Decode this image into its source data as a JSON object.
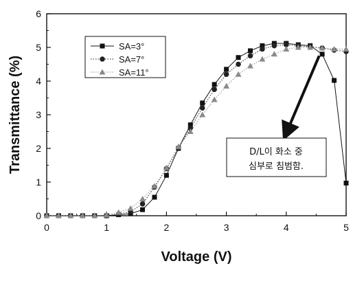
{
  "chart_data": {
    "type": "line",
    "xlabel": "Voltage (V)",
    "ylabel": "Transmittance (%)",
    "xlim": [
      0,
      5
    ],
    "ylim": [
      0,
      6
    ],
    "xticks": [
      "0",
      "1",
      "2",
      "3",
      "4",
      "5"
    ],
    "yticks": [
      "0",
      "1",
      "2",
      "3",
      "4",
      "5",
      "6"
    ],
    "grid": false,
    "legend_position": "upper-left",
    "x": [
      0,
      0.2,
      0.4,
      0.6,
      0.8,
      1.0,
      1.2,
      1.4,
      1.6,
      1.8,
      2.0,
      2.2,
      2.4,
      2.6,
      2.8,
      3.0,
      3.2,
      3.4,
      3.6,
      3.8,
      4.0,
      4.2,
      4.4,
      4.6,
      4.8,
      5.0
    ],
    "series": [
      {
        "name": "SA=3°",
        "marker": "square",
        "line": "solid",
        "color": "#111111",
        "values": [
          0,
          0,
          0,
          0,
          0,
          0,
          0.03,
          0.06,
          0.18,
          0.55,
          1.2,
          2.0,
          2.7,
          3.35,
          3.9,
          4.35,
          4.7,
          4.9,
          5.05,
          5.12,
          5.12,
          5.08,
          5.05,
          4.8,
          4.02,
          0.97
        ]
      },
      {
        "name": "SA=7°",
        "marker": "circle",
        "line": "dotted",
        "color": "#222222",
        "values": [
          0,
          0,
          0,
          0,
          0,
          0,
          0.05,
          0.12,
          0.35,
          0.85,
          1.4,
          2.0,
          2.6,
          3.2,
          3.75,
          4.2,
          4.5,
          4.75,
          4.95,
          5.05,
          5.08,
          5.05,
          5.02,
          4.98,
          4.92,
          4.88
        ]
      },
      {
        "name": "SA=11°",
        "marker": "triangle",
        "line": "dotted",
        "color": "#8a8a8a",
        "values": [
          0,
          0,
          0,
          0,
          0,
          0.02,
          0.1,
          0.22,
          0.5,
          0.88,
          1.42,
          2.05,
          2.5,
          3.0,
          3.45,
          3.85,
          4.2,
          4.45,
          4.65,
          4.8,
          4.95,
          5.0,
          5.0,
          4.98,
          4.95,
          4.95
        ]
      }
    ],
    "annotation": {
      "lines": [
        "D/L이 화소 중",
        "심부로 침범함."
      ],
      "arrow_from": [
        4.55,
        4.75
      ],
      "arrow_to": [
        4.0,
        2.45
      ]
    }
  }
}
